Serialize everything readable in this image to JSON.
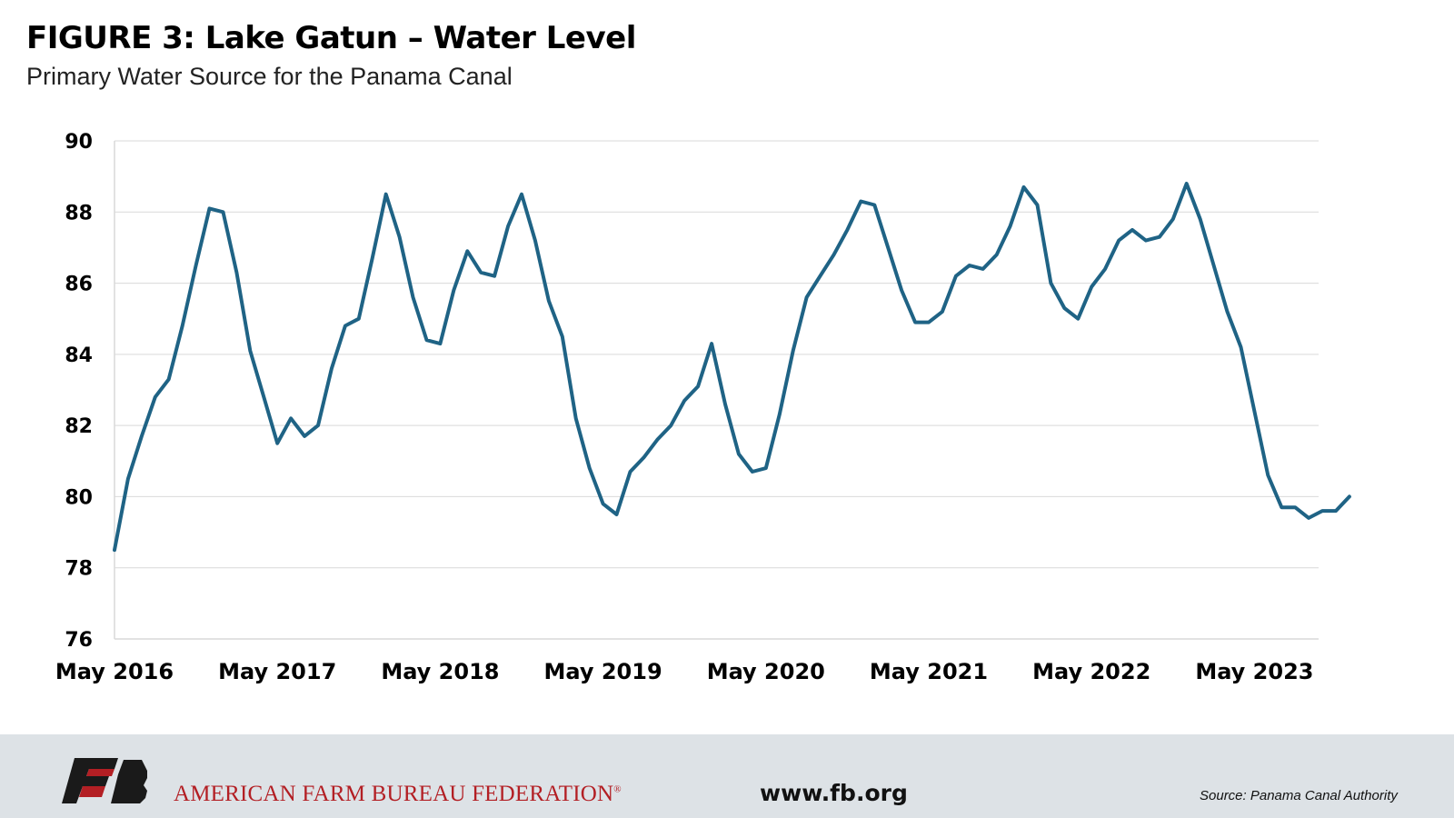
{
  "header": {
    "title": "FIGURE 3: Lake Gatun – Water Level",
    "subtitle": "Primary Water Source for the Panama Canal"
  },
  "footer": {
    "org_name": "AMERICAN FARM BUREAU FEDERATION",
    "registered_mark": "®",
    "url": "www.fb.org",
    "source": "Source: Panama Canal Authority",
    "brand_color": "#b31f24",
    "logo_icon": "fb-logo-icon"
  },
  "chart_data": {
    "type": "line",
    "title": "FIGURE 3: Lake Gatun – Water Level",
    "subtitle": "Primary Water Source for the Panama Canal",
    "xlabel": "",
    "ylabel": "",
    "ylim": [
      76,
      90
    ],
    "yticks": [
      76,
      78,
      80,
      82,
      84,
      86,
      88,
      90
    ],
    "xticks": [
      "May 2016",
      "May 2017",
      "May 2018",
      "May 2019",
      "May 2020",
      "May 2021",
      "May 2022",
      "May 2023"
    ],
    "xlim": [
      "2016-05",
      "2023-12"
    ],
    "grid": "horizontal",
    "line_color": "#1f6385",
    "series": [
      {
        "name": "",
        "points": [
          [
            "2016-05",
            78.5
          ],
          [
            "2016-06",
            80.5
          ],
          [
            "2016-07",
            81.7
          ],
          [
            "2016-08",
            82.8
          ],
          [
            "2016-09",
            83.3
          ],
          [
            "2016-10",
            84.8
          ],
          [
            "2016-11",
            86.5
          ],
          [
            "2016-12",
            88.1
          ],
          [
            "2017-01",
            88.0
          ],
          [
            "2017-02",
            86.3
          ],
          [
            "2017-03",
            84.1
          ],
          [
            "2017-04",
            82.8
          ],
          [
            "2017-05",
            81.5
          ],
          [
            "2017-06",
            82.2
          ],
          [
            "2017-07",
            81.7
          ],
          [
            "2017-08",
            82.0
          ],
          [
            "2017-09",
            83.6
          ],
          [
            "2017-10",
            84.8
          ],
          [
            "2017-11",
            85.0
          ],
          [
            "2017-12",
            86.7
          ],
          [
            "2018-01",
            88.5
          ],
          [
            "2018-02",
            87.3
          ],
          [
            "2018-03",
            85.6
          ],
          [
            "2018-04",
            84.4
          ],
          [
            "2018-05",
            84.3
          ],
          [
            "2018-06",
            85.8
          ],
          [
            "2018-07",
            86.9
          ],
          [
            "2018-08",
            86.3
          ],
          [
            "2018-09",
            86.2
          ],
          [
            "2018-10",
            87.6
          ],
          [
            "2018-11",
            88.5
          ],
          [
            "2018-12",
            87.2
          ],
          [
            "2019-01",
            85.5
          ],
          [
            "2019-02",
            84.5
          ],
          [
            "2019-03",
            82.2
          ],
          [
            "2019-04",
            80.8
          ],
          [
            "2019-05",
            79.8
          ],
          [
            "2019-06",
            79.5
          ],
          [
            "2019-07",
            80.7
          ],
          [
            "2019-08",
            81.1
          ],
          [
            "2019-09",
            81.6
          ],
          [
            "2019-10",
            82.0
          ],
          [
            "2019-11",
            82.7
          ],
          [
            "2019-12",
            83.1
          ],
          [
            "2020-01",
            84.3
          ],
          [
            "2020-02",
            82.6
          ],
          [
            "2020-03",
            81.2
          ],
          [
            "2020-04",
            80.7
          ],
          [
            "2020-05",
            80.8
          ],
          [
            "2020-06",
            82.3
          ],
          [
            "2020-07",
            84.1
          ],
          [
            "2020-08",
            85.6
          ],
          [
            "2020-09",
            86.2
          ],
          [
            "2020-10",
            86.8
          ],
          [
            "2020-11",
            87.5
          ],
          [
            "2020-12",
            88.3
          ],
          [
            "2021-01",
            88.2
          ],
          [
            "2021-02",
            87.0
          ],
          [
            "2021-03",
            85.8
          ],
          [
            "2021-04",
            84.9
          ],
          [
            "2021-05",
            84.9
          ],
          [
            "2021-06",
            85.2
          ],
          [
            "2021-07",
            86.2
          ],
          [
            "2021-08",
            86.5
          ],
          [
            "2021-09",
            86.4
          ],
          [
            "2021-10",
            86.8
          ],
          [
            "2021-11",
            87.6
          ],
          [
            "2021-12",
            88.7
          ],
          [
            "2022-01",
            88.2
          ],
          [
            "2022-02",
            86.0
          ],
          [
            "2022-03",
            85.3
          ],
          [
            "2022-04",
            85.0
          ],
          [
            "2022-05",
            85.9
          ],
          [
            "2022-06",
            86.4
          ],
          [
            "2022-07",
            87.2
          ],
          [
            "2022-08",
            87.5
          ],
          [
            "2022-09",
            87.2
          ],
          [
            "2022-10",
            87.3
          ],
          [
            "2022-11",
            87.8
          ],
          [
            "2022-12",
            88.8
          ],
          [
            "2023-01",
            87.8
          ],
          [
            "2023-02",
            86.5
          ],
          [
            "2023-03",
            85.2
          ],
          [
            "2023-04",
            84.2
          ],
          [
            "2023-05",
            82.4
          ],
          [
            "2023-06",
            80.6
          ],
          [
            "2023-07",
            79.7
          ],
          [
            "2023-08",
            79.7
          ],
          [
            "2023-09",
            79.4
          ],
          [
            "2023-10",
            79.6
          ],
          [
            "2023-11",
            79.6
          ],
          [
            "2023-12",
            80.0
          ]
        ]
      }
    ]
  }
}
